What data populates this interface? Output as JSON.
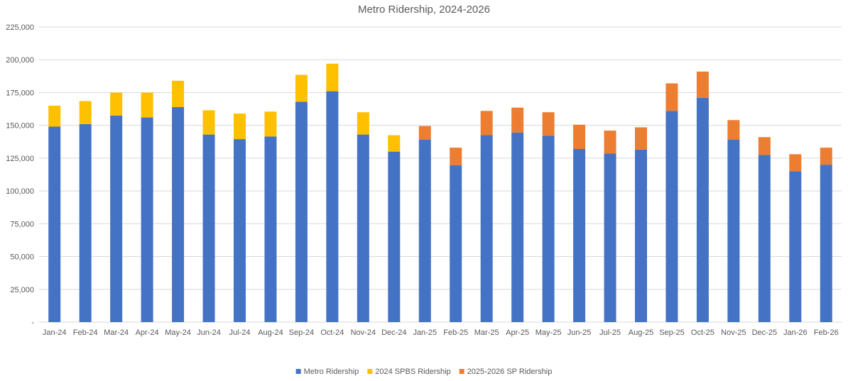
{
  "chart_data": {
    "type": "bar",
    "stacked": true,
    "title": "Metro Ridership, 2024-2026",
    "xlabel": "",
    "ylabel": "",
    "ylim": [
      0,
      225000
    ],
    "ytick_values": [
      0,
      25000,
      50000,
      75000,
      100000,
      125000,
      150000,
      175000,
      200000,
      225000
    ],
    "ytick_labels": [
      "-",
      "25,000",
      "50,000",
      "75,000",
      "100,000",
      "125,000",
      "150,000",
      "175,000",
      "200,000",
      "225,000"
    ],
    "grid": true,
    "legend_position": "bottom",
    "categories": [
      "Jan-24",
      "Feb-24",
      "Mar-24",
      "Apr-24",
      "May-24",
      "Jun-24",
      "Jul-24",
      "Aug-24",
      "Sep-24",
      "Oct-24",
      "Nov-24",
      "Dec-24",
      "Jan-25",
      "Feb-25",
      "Mar-25",
      "Apr-25",
      "May-25",
      "Jun-25",
      "Jul-25",
      "Aug-25",
      "Sep-25",
      "Oct-25",
      "Nov-25",
      "Dec-25",
      "Jan-26",
      "Feb-26"
    ],
    "series": [
      {
        "name": "Metro Ridership",
        "color": "#4472C4",
        "values": [
          149000,
          151000,
          157500,
          156000,
          164000,
          143000,
          139500,
          141500,
          168000,
          176000,
          143000,
          130000,
          139000,
          119500,
          142500,
          144500,
          142000,
          132000,
          128500,
          131500,
          161000,
          171000,
          139000,
          127500,
          115000,
          120000
        ]
      },
      {
        "name": "2024 SPBS Ridership",
        "color": "#FFC000",
        "values": [
          16000,
          17500,
          17500,
          19000,
          20000,
          18500,
          19500,
          19000,
          20500,
          21000,
          17000,
          12500,
          0,
          0,
          0,
          0,
          0,
          0,
          0,
          0,
          0,
          0,
          0,
          0,
          0,
          0
        ]
      },
      {
        "name": "2025-2026 SP Ridership",
        "color": "#ED7D31",
        "values": [
          0,
          0,
          0,
          0,
          0,
          0,
          0,
          0,
          0,
          0,
          0,
          0,
          10500,
          13500,
          18500,
          19000,
          18000,
          18500,
          17500,
          17000,
          21000,
          20000,
          15000,
          13500,
          13000,
          13000
        ]
      }
    ]
  }
}
